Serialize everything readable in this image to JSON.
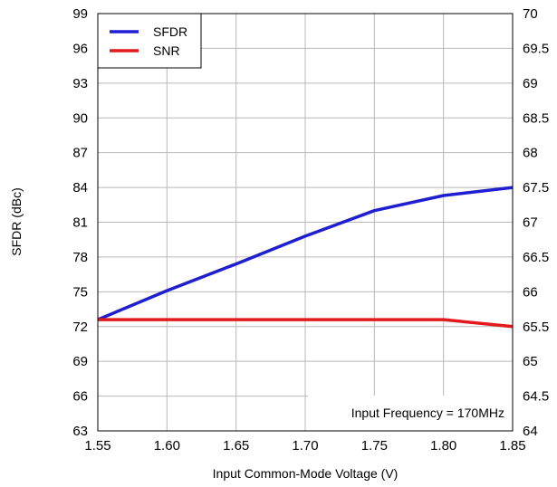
{
  "chart_data": {
    "type": "line",
    "xlabel": "Input Common-Mode Voltage (V)",
    "ylabel": "SFDR (dBc)",
    "xlim": [
      1.55,
      1.85
    ],
    "ylim": [
      63,
      99
    ],
    "y2lim": [
      64,
      70
    ],
    "x_ticks": [
      "1.55",
      "1.60",
      "1.65",
      "1.70",
      "1.75",
      "1.80",
      "1.85"
    ],
    "y_ticks": [
      "63",
      "66",
      "69",
      "72",
      "75",
      "78",
      "81",
      "84",
      "87",
      "90",
      "93",
      "96",
      "99"
    ],
    "y2_ticks": [
      "64",
      "64.5",
      "65",
      "65.5",
      "66",
      "66.5",
      "67",
      "67.5",
      "68",
      "68.5",
      "69",
      "69.5",
      "70"
    ],
    "grid": true,
    "legend_position": "top-left",
    "annotation": "Input Frequency = 170MHz",
    "series": [
      {
        "name": "SFDR",
        "color": "#1f1fd0",
        "axis": "left",
        "x": [
          1.55,
          1.6,
          1.65,
          1.7,
          1.75,
          1.8,
          1.85
        ],
        "y": [
          72.6,
          75.1,
          77.4,
          79.8,
          82.0,
          83.3,
          84.0
        ]
      },
      {
        "name": "SNR",
        "color": "#e31a1c",
        "axis": "right",
        "x": [
          1.55,
          1.6,
          1.65,
          1.7,
          1.75,
          1.8,
          1.85
        ],
        "y": [
          65.6,
          65.6,
          65.6,
          65.6,
          65.6,
          65.6,
          65.5
        ]
      }
    ]
  }
}
